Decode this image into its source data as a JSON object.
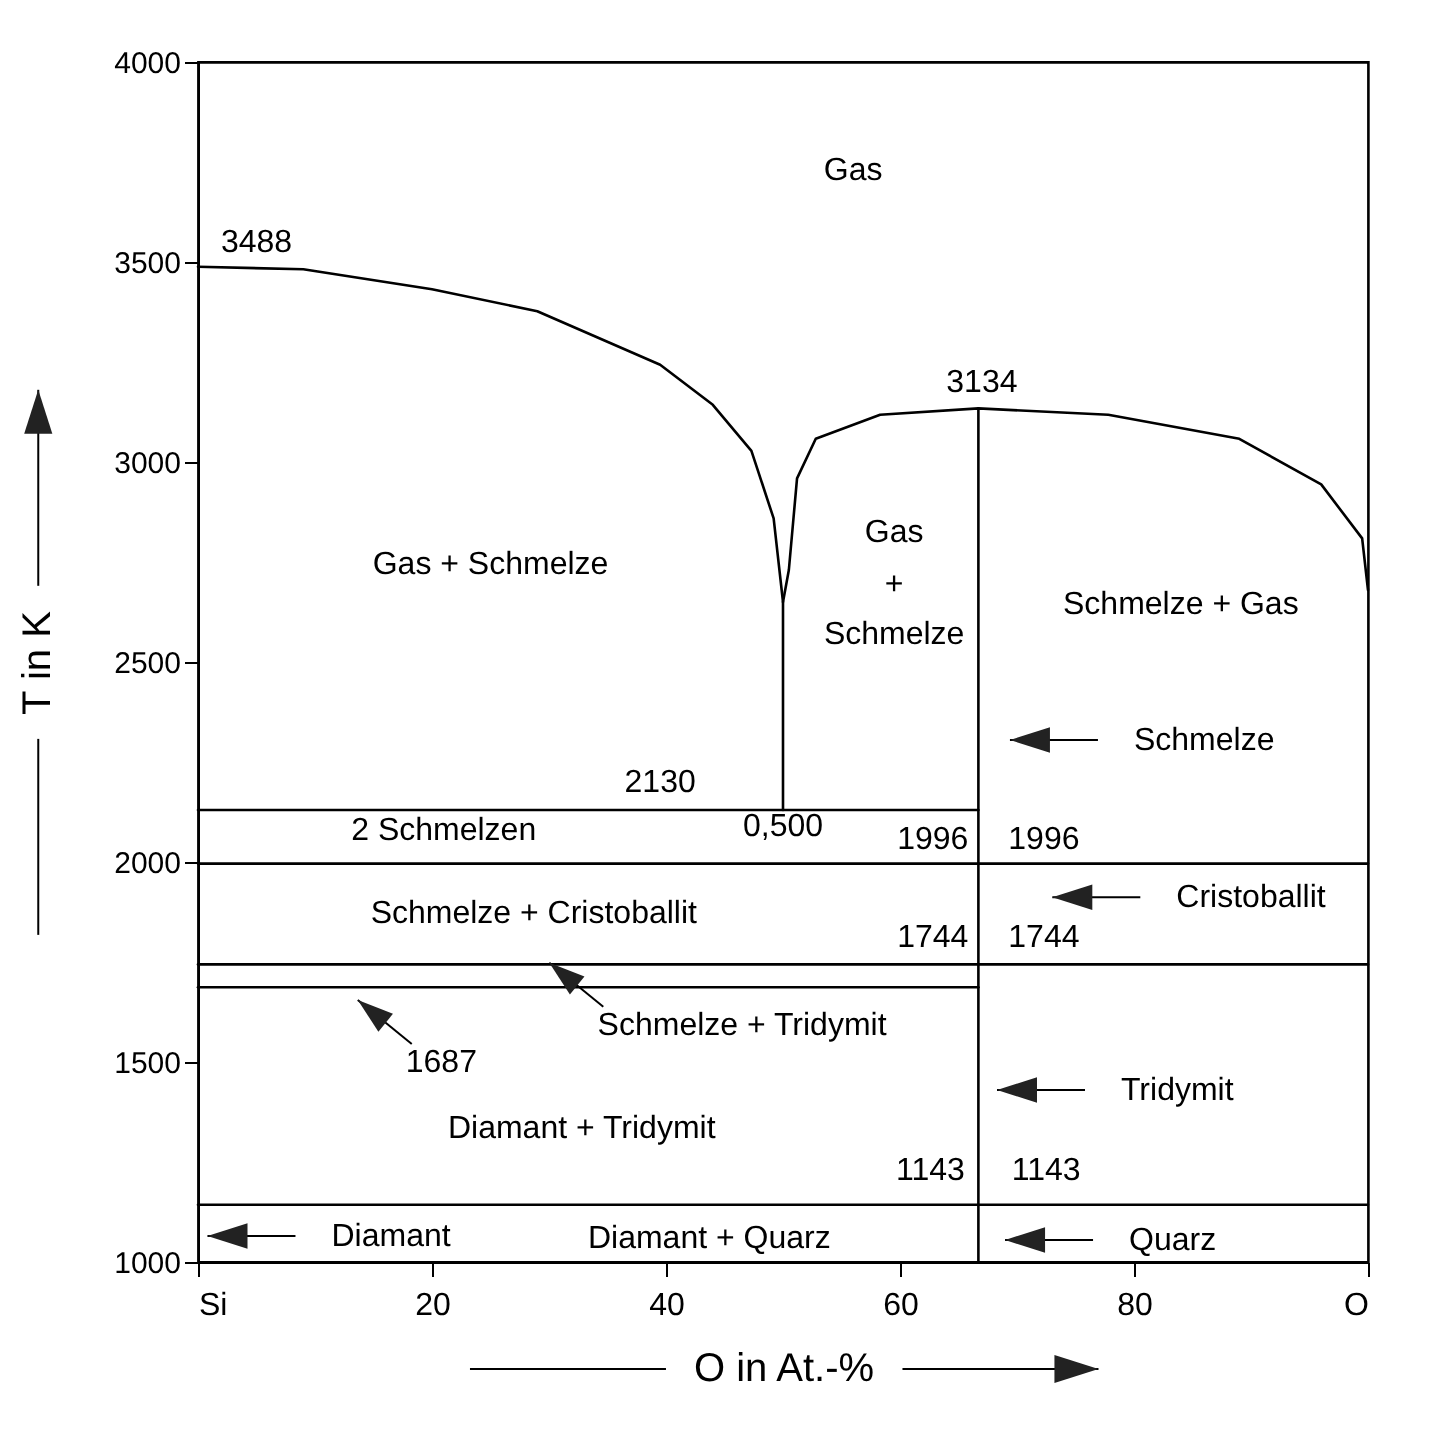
{
  "chart_data": {
    "type": "line",
    "xlabel": "O in At.-%",
    "ylabel": "T in K",
    "xlim": [
      0,
      100
    ],
    "ylim": [
      1000,
      4000
    ],
    "xticks": [
      {
        "value": 0,
        "label": "Si"
      },
      20,
      40,
      60,
      80,
      {
        "value": 100,
        "label": "O"
      }
    ],
    "yticks": [
      1000,
      1500,
      2000,
      2500,
      3000,
      3500,
      4000
    ],
    "grid": false,
    "marker": "none",
    "line_style": "solid",
    "series": [
      {
        "color": "#000000",
        "x": [
          0,
          9,
          20,
          29,
          39.5,
          44,
          47.3,
          49.2,
          50,
          50
        ],
        "values": [
          3488,
          3482,
          3432,
          3377,
          3243,
          3143,
          3028,
          2859,
          2650,
          2130
        ]
      },
      {
        "color": "#000000",
        "x": [
          50,
          50.5,
          51.2,
          52.8,
          58.3,
          66.7,
          77.8,
          89,
          96,
          99.5,
          100
        ],
        "values": [
          2650,
          2730,
          2959,
          3058,
          3118,
          3134,
          3118,
          3058,
          2944,
          2809,
          2680
        ]
      },
      {
        "color": "#000000",
        "x": [
          66.7,
          66.7
        ],
        "values": [
          1000,
          3134
        ]
      },
      {
        "color": "#000000",
        "x": [
          0,
          66.7
        ],
        "values": [
          2130,
          2130
        ]
      },
      {
        "color": "#000000",
        "x": [
          0,
          100
        ],
        "values": [
          1996,
          1996
        ]
      },
      {
        "color": "#000000",
        "x": [
          0,
          100
        ],
        "values": [
          1744,
          1744
        ]
      },
      {
        "color": "#000000",
        "x": [
          0,
          66.7
        ],
        "values": [
          1687,
          1687
        ]
      },
      {
        "color": "#000000",
        "x": [
          0,
          100
        ],
        "values": [
          1143,
          1143
        ]
      }
    ],
    "annotations": [
      "3488",
      "Gas",
      "Gas + Schmelze",
      "3134",
      "Gas",
      "+",
      "Schmelze",
      "Schmelze + Gas",
      "Schmelze",
      "2130",
      "2 Schmelzen",
      "0,500",
      "1996",
      "1996",
      "Schmelze + Cristoballit",
      "Cristoballit",
      "1744",
      "1744",
      "1687",
      "Schmelze + Tridymit",
      "Tridymit",
      "Diamant + Tridymit",
      "1143",
      "1143",
      "Diamant",
      "Diamant + Quarz",
      "Quarz"
    ]
  }
}
